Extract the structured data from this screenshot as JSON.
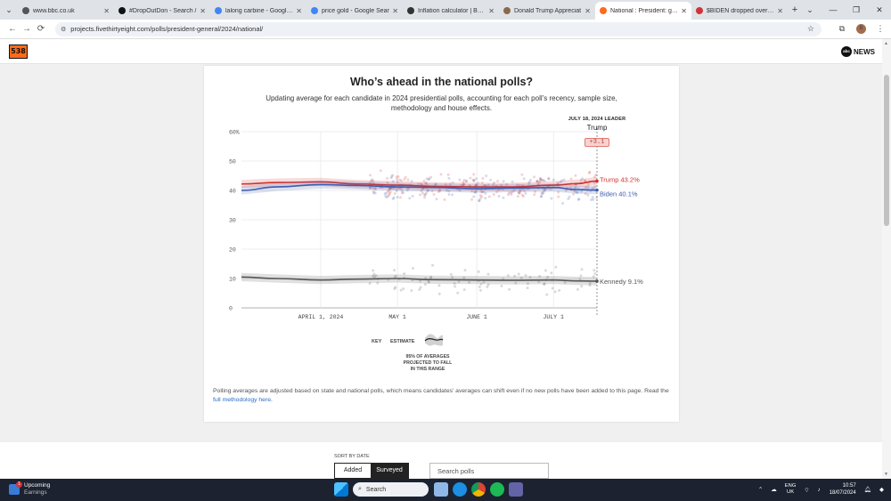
{
  "browser": {
    "tabs": [
      {
        "title": "www.bbc.co.uk",
        "color": "#555555",
        "active": false
      },
      {
        "title": "#DropOutDon - Search /",
        "color": "#111111",
        "active": false
      },
      {
        "title": "lalong carbine - Google S",
        "color": "#4285f4",
        "active": false
      },
      {
        "title": "price gold - Google Sear",
        "color": "#4285f4",
        "active": false
      },
      {
        "title": "Inflation calculator | Bank",
        "color": "#333333",
        "active": false
      },
      {
        "title": "Donald Trump Appreciat",
        "color": "#8a6a4a",
        "active": false
      },
      {
        "title": "National : President: gene",
        "color": "#ff6a1a",
        "active": true
      },
      {
        "title": "$BIDEN dropped over 4%",
        "color": "#d13438",
        "active": false
      }
    ],
    "url": "projects.fivethirtyeight.com/polls/president-general/2024/national/"
  },
  "site": {
    "logo": "538",
    "abc_ball": "abc",
    "abc_news": "NEWS"
  },
  "card": {
    "title": "Who’s ahead in the national polls?",
    "subtitle": "Updating average for each candidate in 2024 presidential polls, accounting for each poll’s recency, sample size, methodology and house effects.",
    "leader_title": "JULY 18, 2024 LEADER",
    "leader_name": "Trump",
    "leader_margin": "+3.1",
    "key_label": "KEY",
    "key_estimate": "ESTIMATE",
    "key_range": "95% OF AVERAGES PROJECTED TO FALL IN THIS RANGE",
    "footnote": "Polling averages are adjusted based on state and national polls, which means candidates’ averages can shift even if no new polls have been added to this page. Read the",
    "footnote_link": "full methodology here",
    "footnote_end": "."
  },
  "chart_data": {
    "type": "line",
    "y_ticks": [
      "60%",
      "50",
      "40",
      "30",
      "20",
      "10",
      "0"
    ],
    "ylim": [
      0,
      60
    ],
    "x_ticks": [
      "APRIL 1, 2024",
      "MAY 1",
      "JUNE 1",
      "JULY 1"
    ],
    "x_range": [
      "2024-03-01",
      "2024-07-18"
    ],
    "series": [
      {
        "name": "Trump",
        "end_label": "Trump 43.2%",
        "color": "#d4302b",
        "x": [
          "2024-03-01",
          "2024-03-15",
          "2024-04-01",
          "2024-04-15",
          "2024-05-01",
          "2024-05-15",
          "2024-06-01",
          "2024-06-15",
          "2024-07-01",
          "2024-07-10",
          "2024-07-18"
        ],
        "y": [
          42.2,
          42.7,
          42.9,
          42.2,
          41.8,
          41.4,
          41.2,
          41.2,
          41.8,
          42.3,
          43.2
        ]
      },
      {
        "name": "Biden",
        "end_label": "Biden 40.1%",
        "color": "#3b5cb0",
        "x": [
          "2024-03-01",
          "2024-03-15",
          "2024-04-01",
          "2024-04-15",
          "2024-05-01",
          "2024-05-15",
          "2024-06-01",
          "2024-06-15",
          "2024-07-01",
          "2024-07-10",
          "2024-07-18"
        ],
        "y": [
          40.0,
          41.2,
          42.0,
          41.7,
          41.2,
          41.0,
          40.6,
          40.8,
          41.0,
          40.3,
          40.1
        ]
      },
      {
        "name": "Kennedy",
        "end_label": "Kennedy 9.1%",
        "color": "#555555",
        "x": [
          "2024-03-01",
          "2024-03-15",
          "2024-04-01",
          "2024-04-15",
          "2024-05-01",
          "2024-05-15",
          "2024-06-01",
          "2024-06-15",
          "2024-07-01",
          "2024-07-10",
          "2024-07-18"
        ],
        "y": [
          10.5,
          10.0,
          9.5,
          9.8,
          10.0,
          9.6,
          9.5,
          9.4,
          9.5,
          9.2,
          9.1
        ]
      }
    ],
    "grid": true,
    "legend": "end-of-line labels"
  },
  "controls": {
    "sort_label": "SORT BY DATE",
    "sort_added": "Added",
    "sort_surveyed": "Surveyed",
    "search_placeholder": "Search polls"
  },
  "taskbar": {
    "earnings_title": "Upcoming",
    "earnings_sub": "Earnings",
    "earnings_badge": "1",
    "search": "Search",
    "lang1": "ENG",
    "lang2": "UK",
    "time": "10:57",
    "date": "18/07/2024"
  }
}
